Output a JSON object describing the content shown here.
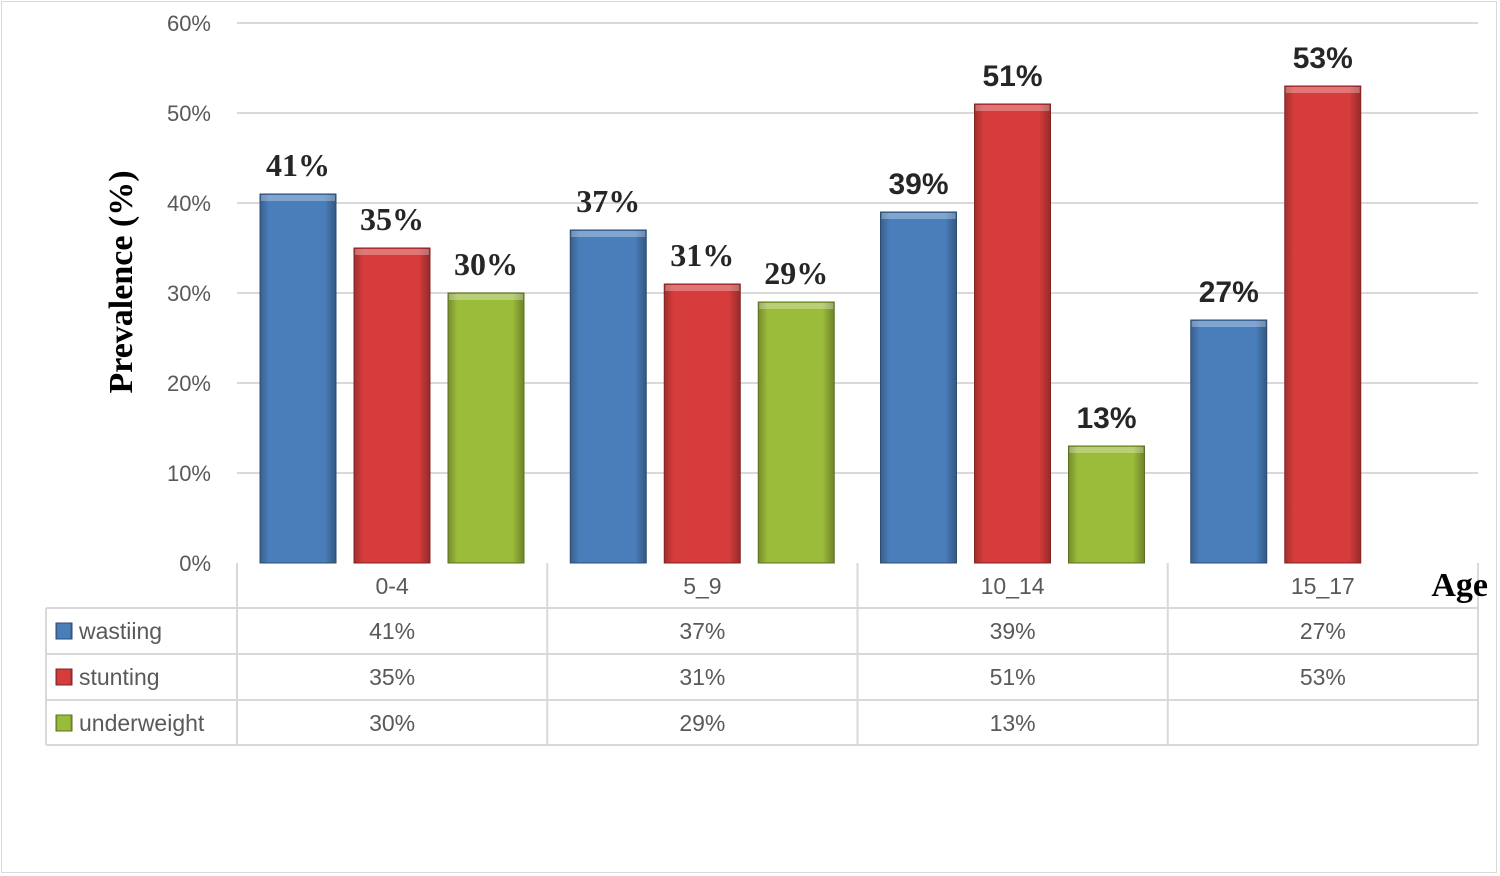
{
  "chart_data": {
    "type": "bar",
    "title": "",
    "xlabel": "Age",
    "ylabel": "Prevalence (%)",
    "ylim": [
      0,
      60
    ],
    "yticks": [
      "0%",
      "10%",
      "20%",
      "30%",
      "40%",
      "50%",
      "60%"
    ],
    "grid": true,
    "legend": "data-table",
    "categories": [
      "0-4",
      "5_9",
      "10_14",
      "15_17"
    ],
    "series": [
      {
        "name": "wastiing",
        "color": "#4a7ebb",
        "values": [
          41,
          37,
          39,
          27
        ],
        "labels": [
          "41%",
          "37%",
          "39%",
          "27%"
        ]
      },
      {
        "name": "stunting",
        "color": "#d63c3c",
        "values": [
          35,
          31,
          51,
          53
        ],
        "labels": [
          "35%",
          "31%",
          "51%",
          "53%"
        ]
      },
      {
        "name": "underweight",
        "color": "#9bbb3b",
        "values": [
          30,
          29,
          13,
          null
        ],
        "labels": [
          "30%",
          "29%",
          "13%",
          ""
        ]
      }
    ]
  }
}
